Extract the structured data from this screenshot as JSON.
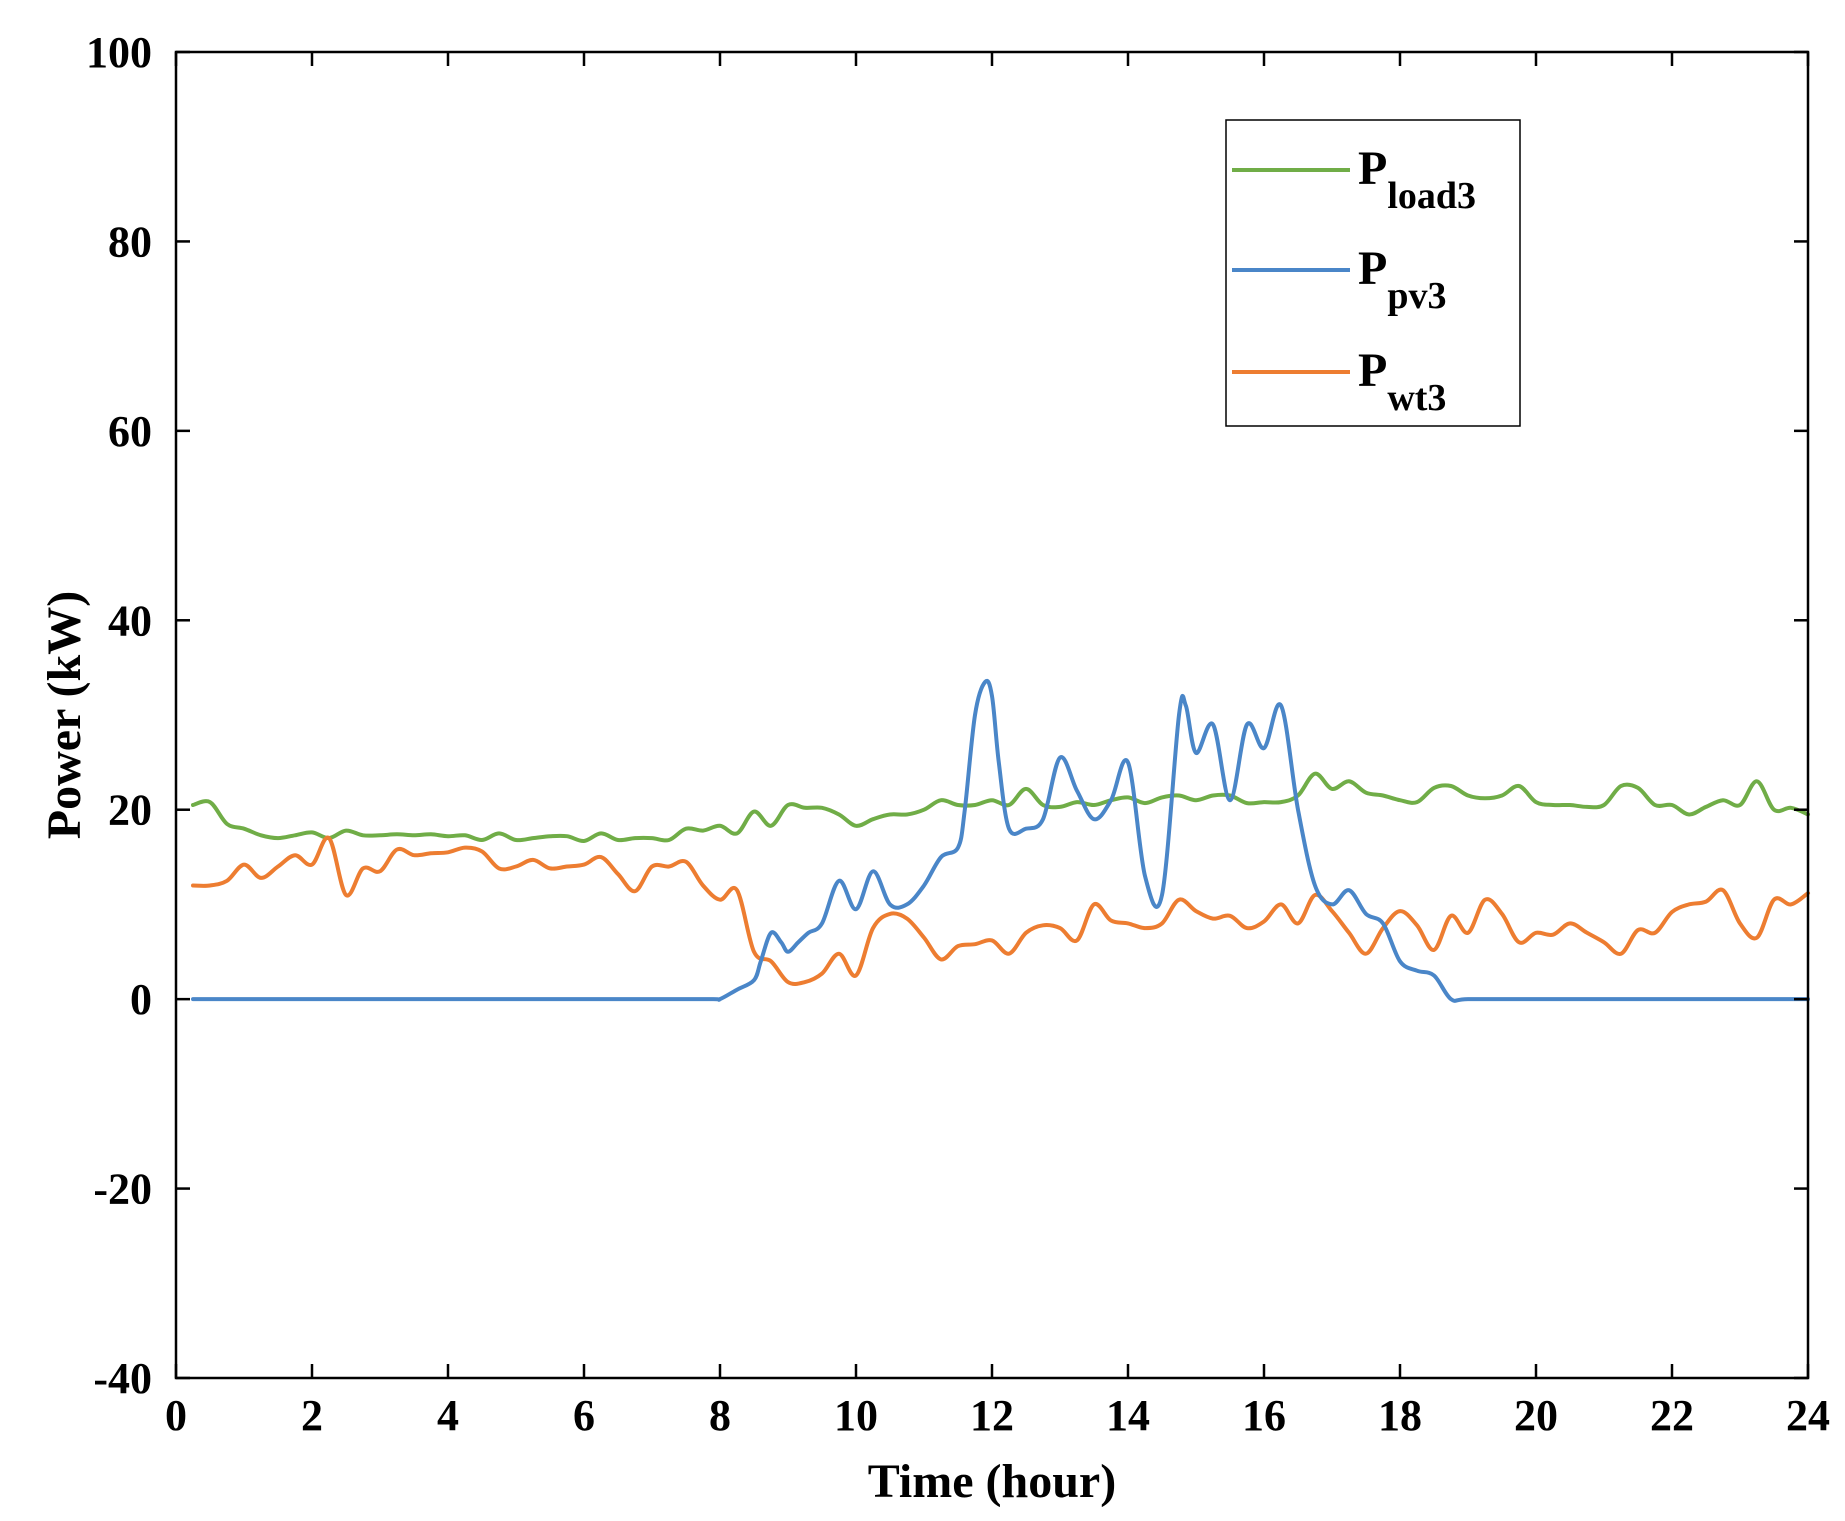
{
  "chart_data": {
    "type": "line",
    "xlabel": "Time (hour)",
    "ylabel": "Power (kW)",
    "xlim": [
      0,
      24
    ],
    "ylim": [
      -40,
      100
    ],
    "xticks": [
      0,
      2,
      4,
      6,
      8,
      10,
      12,
      14,
      16,
      18,
      20,
      22,
      24
    ],
    "yticks": [
      -40,
      -20,
      0,
      20,
      40,
      60,
      80,
      100
    ],
    "grid": false,
    "legend_position": "top-right",
    "series": [
      {
        "name": "Pload3",
        "label_main": "P",
        "label_sub": "load3",
        "color": "#70ad47",
        "x": [
          0.25,
          0.5,
          0.75,
          1.0,
          1.25,
          1.5,
          1.75,
          2.0,
          2.25,
          2.5,
          2.75,
          3.0,
          3.25,
          3.5,
          3.75,
          4.0,
          4.25,
          4.5,
          4.75,
          5.0,
          5.25,
          5.5,
          5.75,
          6.0,
          6.25,
          6.5,
          6.75,
          7.0,
          7.25,
          7.5,
          7.75,
          8.0,
          8.25,
          8.5,
          8.75,
          9.0,
          9.25,
          9.5,
          9.75,
          10.0,
          10.25,
          10.5,
          10.75,
          11.0,
          11.25,
          11.5,
          11.75,
          12.0,
          12.25,
          12.5,
          12.75,
          13.0,
          13.25,
          13.5,
          13.75,
          14.0,
          14.25,
          14.5,
          14.75,
          15.0,
          15.25,
          15.5,
          15.75,
          16.0,
          16.25,
          16.5,
          16.75,
          17.0,
          17.25,
          17.5,
          17.75,
          18.0,
          18.25,
          18.5,
          18.75,
          19.0,
          19.25,
          19.5,
          19.75,
          20.0,
          20.25,
          20.5,
          20.75,
          21.0,
          21.25,
          21.5,
          21.75,
          22.0,
          22.25,
          22.5,
          22.75,
          23.0,
          23.25,
          23.5,
          23.75,
          24.0
        ],
        "y": [
          20.5,
          20.8,
          18.5,
          18.0,
          17.3,
          17.0,
          17.3,
          17.6,
          17.0,
          17.8,
          17.3,
          17.3,
          17.4,
          17.3,
          17.4,
          17.2,
          17.3,
          16.8,
          17.5,
          16.8,
          17.0,
          17.2,
          17.2,
          16.7,
          17.5,
          16.8,
          17.0,
          17.0,
          16.8,
          18.0,
          17.8,
          18.3,
          17.5,
          19.8,
          18.3,
          20.5,
          20.2,
          20.2,
          19.5,
          18.3,
          19.0,
          19.5,
          19.5,
          20.0,
          21.0,
          20.5,
          20.5,
          21.0,
          20.5,
          22.2,
          20.5,
          20.3,
          20.8,
          20.5,
          21.0,
          21.3,
          20.7,
          21.3,
          21.5,
          21.0,
          21.5,
          21.5,
          20.7,
          20.8,
          20.8,
          21.5,
          23.8,
          22.2,
          23.0,
          21.8,
          21.5,
          21.0,
          20.8,
          22.3,
          22.5,
          21.5,
          21.2,
          21.5,
          22.5,
          20.8,
          20.5,
          20.5,
          20.3,
          20.5,
          22.5,
          22.3,
          20.5,
          20.5,
          19.5,
          20.3,
          21.0,
          20.5,
          23.0,
          20.0,
          20.2,
          19.5
        ]
      },
      {
        "name": "Ppv3",
        "label_main": "P",
        "label_sub": "pv3",
        "color": "#4a86c8",
        "x": [
          0.25,
          1,
          2,
          3,
          4,
          5,
          6,
          7,
          7.9,
          8.0,
          8.25,
          8.5,
          8.6,
          8.75,
          8.9,
          9.0,
          9.15,
          9.3,
          9.5,
          9.75,
          10.0,
          10.25,
          10.5,
          10.75,
          11.0,
          11.25,
          11.5,
          11.6,
          11.75,
          11.9,
          12.0,
          12.1,
          12.25,
          12.5,
          12.75,
          13.0,
          13.25,
          13.5,
          13.75,
          14.0,
          14.25,
          14.5,
          14.75,
          14.85,
          15.0,
          15.25,
          15.5,
          15.75,
          16.0,
          16.25,
          16.5,
          16.75,
          17.0,
          17.25,
          17.5,
          17.75,
          18.0,
          18.25,
          18.5,
          18.75,
          19.0,
          20,
          21,
          22,
          23,
          24
        ],
        "y": [
          0,
          0,
          0,
          0,
          0,
          0,
          0,
          0,
          0,
          0,
          1,
          2,
          4,
          7,
          6,
          5,
          6,
          7,
          8,
          12.5,
          9.5,
          13.5,
          10,
          10,
          12,
          15,
          16,
          20,
          30,
          33.5,
          32,
          25,
          18,
          18,
          19,
          25.5,
          22,
          19,
          21,
          25,
          13,
          11,
          30,
          31,
          26,
          29,
          21,
          29,
          26.5,
          31,
          20,
          12,
          10,
          11.5,
          9,
          8,
          4,
          3,
          2.5,
          0,
          0,
          0,
          0,
          0,
          0,
          0
        ]
      },
      {
        "name": "Pwt3",
        "label_main": "P",
        "label_sub": "wt3",
        "color": "#ed7d31",
        "x": [
          0.25,
          0.5,
          0.75,
          1.0,
          1.25,
          1.5,
          1.75,
          2.0,
          2.25,
          2.5,
          2.75,
          3.0,
          3.25,
          3.5,
          3.75,
          4.0,
          4.25,
          4.5,
          4.75,
          5.0,
          5.25,
          5.5,
          5.75,
          6.0,
          6.25,
          6.5,
          6.75,
          7.0,
          7.25,
          7.5,
          7.75,
          8.0,
          8.25,
          8.5,
          8.75,
          9.0,
          9.25,
          9.5,
          9.75,
          10.0,
          10.25,
          10.5,
          10.75,
          11.0,
          11.25,
          11.5,
          11.75,
          12.0,
          12.25,
          12.5,
          12.75,
          13.0,
          13.25,
          13.5,
          13.75,
          14.0,
          14.25,
          14.5,
          14.75,
          15.0,
          15.25,
          15.5,
          15.75,
          16.0,
          16.25,
          16.5,
          16.75,
          17.0,
          17.25,
          17.5,
          17.75,
          18.0,
          18.25,
          18.5,
          18.75,
          19.0,
          19.25,
          19.5,
          19.75,
          20.0,
          20.25,
          20.5,
          20.75,
          21.0,
          21.25,
          21.5,
          21.75,
          22.0,
          22.25,
          22.5,
          22.75,
          23.0,
          23.25,
          23.5,
          23.75,
          24.0
        ],
        "y": [
          12.0,
          12.0,
          12.5,
          14.2,
          12.8,
          14.0,
          15.2,
          14.2,
          17.0,
          11.0,
          13.8,
          13.5,
          15.8,
          15.2,
          15.4,
          15.5,
          16.0,
          15.6,
          13.8,
          14.0,
          14.7,
          13.8,
          14.0,
          14.2,
          15.0,
          13.2,
          11.4,
          14.0,
          14.0,
          14.5,
          12.0,
          10.5,
          11.5,
          5.0,
          4.0,
          1.8,
          1.8,
          2.7,
          4.8,
          2.5,
          7.5,
          9.0,
          8.5,
          6.5,
          4.2,
          5.6,
          5.8,
          6.2,
          4.8,
          7.0,
          7.8,
          7.5,
          6.2,
          10.0,
          8.3,
          8.0,
          7.5,
          8.0,
          10.5,
          9.3,
          8.5,
          8.8,
          7.5,
          8.2,
          10.0,
          8.0,
          11.0,
          9.3,
          7.0,
          4.8,
          7.5,
          9.3,
          7.8,
          5.2,
          8.8,
          7.0,
          10.5,
          9.0,
          6.0,
          7.0,
          6.8,
          8.0,
          7.0,
          6.0,
          4.8,
          7.3,
          7.0,
          9.2,
          10.0,
          10.3,
          11.5,
          8.0,
          6.5,
          10.5,
          10.0,
          11.2
        ]
      }
    ]
  }
}
